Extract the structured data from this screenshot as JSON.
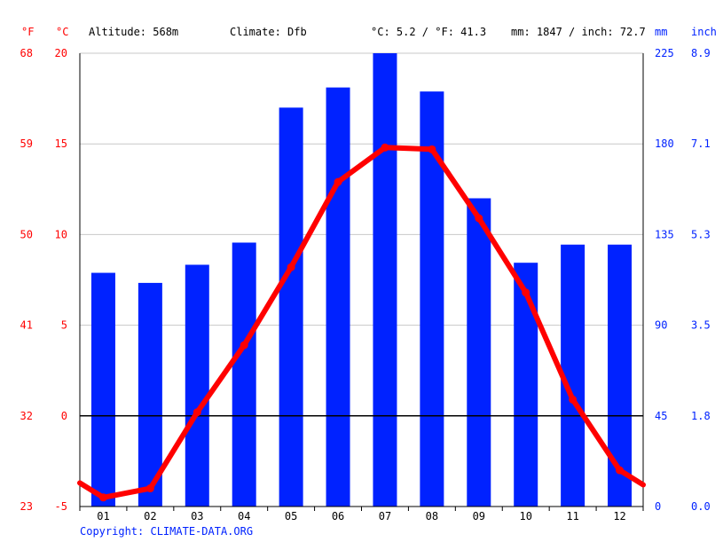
{
  "header": {
    "unit_f": "°F",
    "unit_c": "°C",
    "altitude": "Altitude: 568m",
    "climate": "Climate: Dfb",
    "temp_summary": "°C: 5.2 / °F: 41.3",
    "precip_summary": "mm: 1847 / inch: 72.7",
    "unit_mm": "mm",
    "unit_inch": "inch"
  },
  "footer": {
    "copyright": "Copyright: CLIMATE-DATA.ORG"
  },
  "colors": {
    "bars": "#0022ff",
    "line": "#ff0000",
    "temp_axis": "#ff0000",
    "precip_axis": "#0022ff",
    "grid": "#c8c8c8",
    "zero_line": "#000000",
    "copyright": "#0022ff"
  },
  "chart_data": {
    "type": "bar",
    "categories": [
      "01",
      "02",
      "03",
      "04",
      "05",
      "06",
      "07",
      "08",
      "09",
      "10",
      "11",
      "12"
    ],
    "series": [
      {
        "type": "bar",
        "axis": "right",
        "unit": "mm",
        "values": [
          116,
          111,
          120,
          131,
          198,
          208,
          225,
          206,
          153,
          121,
          130,
          130
        ]
      },
      {
        "type": "line",
        "axis": "left",
        "unit": "°C",
        "values": [
          -4.5,
          -4.0,
          0.2,
          3.9,
          8.2,
          12.9,
          14.8,
          14.7,
          10.9,
          6.8,
          0.9,
          -3.0
        ],
        "start_value": -3.7,
        "end_value": -3.8
      }
    ],
    "y_left_c": {
      "min": -5,
      "max": 20,
      "ticks": [
        "-5",
        "0",
        "5",
        "10",
        "15",
        "20"
      ]
    },
    "y_left_f": {
      "ticks": [
        "23",
        "32",
        "41",
        "50",
        "59",
        "68"
      ]
    },
    "y_right_mm": {
      "min": 0,
      "max": 225,
      "ticks": [
        "0",
        "45",
        "90",
        "135",
        "180",
        "225"
      ]
    },
    "y_right_inch": {
      "ticks": [
        "0.0",
        "1.8",
        "3.5",
        "5.3",
        "7.1",
        "8.9"
      ]
    },
    "grid": true
  }
}
